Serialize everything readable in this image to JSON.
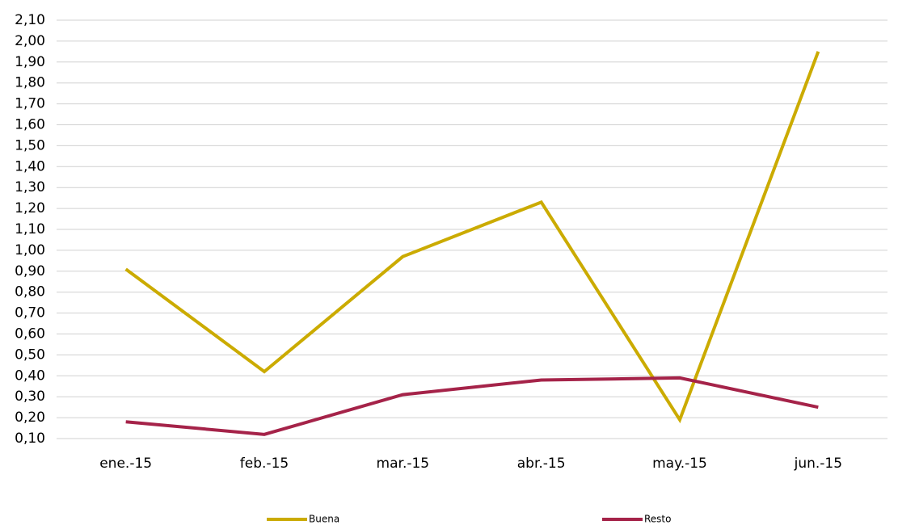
{
  "chart_data": {
    "type": "line",
    "categories": [
      "ene.-15",
      "feb.-15",
      "mar.-15",
      "abr.-15",
      "may.-15",
      "jun.-15"
    ],
    "series": [
      {
        "name": "Buena",
        "color": "#cbab00",
        "values": [
          0.91,
          0.42,
          0.97,
          1.23,
          0.19,
          1.95
        ]
      },
      {
        "name": "Resto",
        "color": "#a52349",
        "values": [
          0.18,
          0.12,
          0.31,
          0.38,
          0.39,
          0.25
        ]
      }
    ],
    "ylim": [
      0.1,
      2.1
    ],
    "yticks": [
      {
        "value": 0.1,
        "label": "0,10"
      },
      {
        "value": 0.2,
        "label": "0,20"
      },
      {
        "value": 0.3,
        "label": "0,30"
      },
      {
        "value": 0.4,
        "label": "0,40"
      },
      {
        "value": 0.5,
        "label": "0,50"
      },
      {
        "value": 0.6,
        "label": "0,60"
      },
      {
        "value": 0.7,
        "label": "0,70"
      },
      {
        "value": 0.8,
        "label": "0,80"
      },
      {
        "value": 0.9,
        "label": "0,90"
      },
      {
        "value": 1.0,
        "label": "1,00"
      },
      {
        "value": 1.1,
        "label": "1,10"
      },
      {
        "value": 1.2,
        "label": "1,20"
      },
      {
        "value": 1.3,
        "label": "1,30"
      },
      {
        "value": 1.4,
        "label": "1,40"
      },
      {
        "value": 1.5,
        "label": "1,50"
      },
      {
        "value": 1.6,
        "label": "1,60"
      },
      {
        "value": 1.7,
        "label": "1,70"
      },
      {
        "value": 1.8,
        "label": "1,80"
      },
      {
        "value": 1.9,
        "label": "1,90"
      },
      {
        "value": 2.0,
        "label": "2,00"
      },
      {
        "value": 2.1,
        "label": "2,10"
      }
    ],
    "grid": true,
    "legend": "bottom"
  }
}
